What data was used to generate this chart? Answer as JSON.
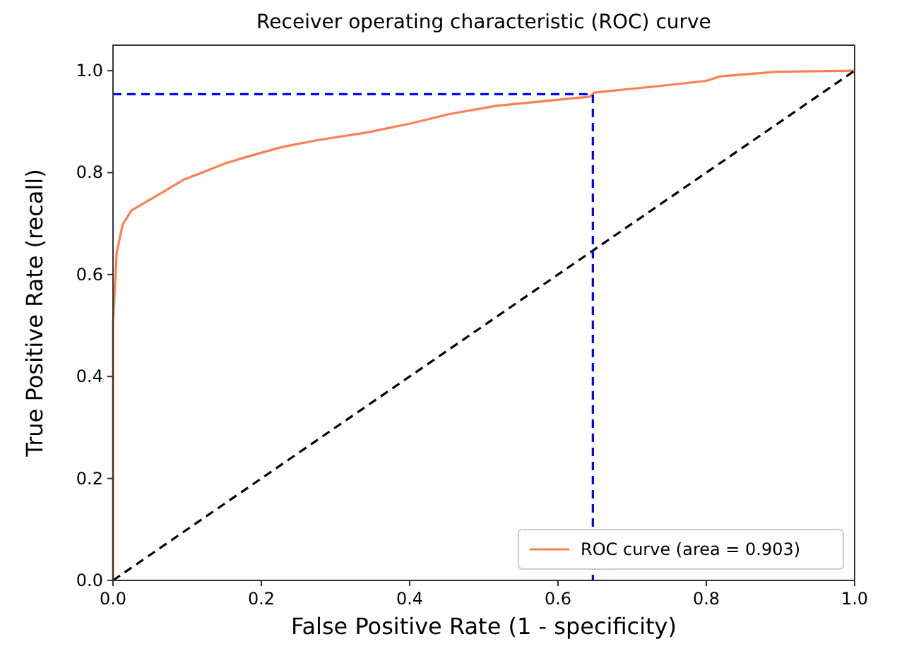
{
  "chart_data": {
    "type": "line",
    "title": "Receiver operating characteristic (ROC) curve",
    "xlabel": "False Positive Rate (1 - specificity)",
    "ylabel": "True Positive Rate (recall)",
    "xlim": [
      0,
      1
    ],
    "ylim": [
      0,
      1.05
    ],
    "xticks": [
      {
        "value": 0,
        "label": "0.0"
      },
      {
        "value": 0.2,
        "label": "0.2"
      },
      {
        "value": 0.4,
        "label": "0.4"
      },
      {
        "value": 0.6,
        "label": "0.6"
      },
      {
        "value": 0.8,
        "label": "0.8"
      },
      {
        "value": 1,
        "label": "1.0"
      }
    ],
    "yticks": [
      {
        "value": 0,
        "label": "0.0"
      },
      {
        "value": 0.2,
        "label": "0.2"
      },
      {
        "value": 0.4,
        "label": "0.4"
      },
      {
        "value": 0.6,
        "label": "0.6"
      },
      {
        "value": 0.8,
        "label": "0.8"
      },
      {
        "value": 1,
        "label": "1.0"
      }
    ],
    "grid": false,
    "legend": "bottom right",
    "marker": "none",
    "series": [
      {
        "name": "ROC curve (area = 0.903)",
        "color": "#ff7f50",
        "line_style": "solid",
        "x": [
          0,
          0,
          0.005,
          0.013,
          0.025,
          0.057,
          0.095,
          0.12,
          0.151,
          0.183,
          0.227,
          0.277,
          0.34,
          0.403,
          0.454,
          0.517,
          0.58,
          0.643,
          0.649,
          0.737,
          0.8,
          0.819,
          0.895,
          1
        ],
        "values": [
          0,
          0.504,
          0.643,
          0.698,
          0.726,
          0.753,
          0.786,
          0.8,
          0.818,
          0.832,
          0.85,
          0.864,
          0.878,
          0.897,
          0.915,
          0.931,
          0.94,
          0.949,
          0.957,
          0.97,
          0.98,
          0.989,
          0.998,
          1
        ]
      },
      {
        "color": "#000000",
        "line_style": "dashed",
        "x": [
          0,
          1
        ],
        "values": [
          0,
          1
        ]
      },
      {
        "color": "#0000ff",
        "line_style": "dashed",
        "x": [
          0,
          0.647,
          0.647
        ],
        "values": [
          0.954,
          0.954,
          0
        ]
      }
    ]
  }
}
